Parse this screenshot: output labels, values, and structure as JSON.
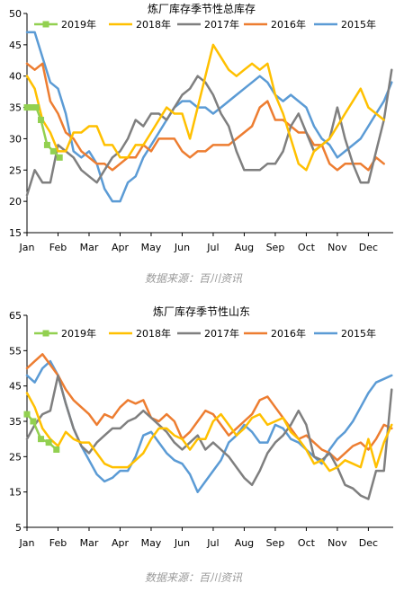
{
  "source_label": "数据来源：百川资讯",
  "chart_data": [
    {
      "type": "line",
      "title": "炼厂库存季节性总库存",
      "xlabel": "",
      "ylabel": "",
      "ylim": [
        15,
        50
      ],
      "yticks": [
        15,
        20,
        25,
        30,
        35,
        40,
        45,
        50
      ],
      "xlim": [
        0,
        11.8
      ],
      "month_labels": [
        "Jan",
        "Feb",
        "Mar",
        "Apr",
        "May",
        "Jun",
        "Jul",
        "Aug",
        "Sep",
        "Oct",
        "Nov",
        "Dec"
      ],
      "legend_position": "top",
      "series": [
        {
          "name": "2019年",
          "color": "#92D050",
          "marker": "square",
          "x": [
            0,
            0.15,
            0.3,
            0.45,
            0.65,
            0.85,
            1.05
          ],
          "y": [
            35,
            35,
            35,
            33,
            29,
            28,
            27
          ]
        },
        {
          "name": "2018年",
          "color": "#FFC000",
          "x": [
            0,
            0.25,
            0.5,
            0.75,
            1.0,
            1.25,
            1.5,
            1.75,
            2.0,
            2.25,
            2.5,
            2.75,
            3.0,
            3.25,
            3.5,
            3.75,
            4.0,
            4.25,
            4.5,
            4.75,
            5.0,
            5.25,
            5.5,
            5.75,
            6.0,
            6.25,
            6.5,
            6.75,
            7.0,
            7.25,
            7.5,
            7.75,
            8.0,
            8.25,
            8.5,
            8.75,
            9.0,
            9.25,
            9.5,
            9.75,
            10.0,
            10.25,
            10.5,
            10.75,
            11.0,
            11.25,
            11.5
          ],
          "y": [
            40,
            38,
            33,
            31,
            28,
            28,
            31,
            31,
            32,
            32,
            29,
            29,
            27,
            27,
            29,
            29,
            31,
            33,
            35,
            34,
            34,
            30,
            35,
            40,
            45,
            43,
            41,
            40,
            41,
            42,
            41,
            42,
            37,
            34,
            30,
            26,
            25,
            28,
            29,
            30,
            32,
            34,
            36,
            38,
            35,
            34,
            33
          ]
        },
        {
          "name": "2017年",
          "color": "#7F7F7F",
          "x": [
            0,
            0.25,
            0.5,
            0.75,
            1.0,
            1.25,
            1.5,
            1.75,
            2.0,
            2.25,
            2.5,
            2.75,
            3.0,
            3.25,
            3.5,
            3.75,
            4.0,
            4.25,
            4.5,
            4.75,
            5.0,
            5.25,
            5.5,
            5.75,
            6.0,
            6.25,
            6.5,
            6.75,
            7.0,
            7.25,
            7.5,
            7.75,
            8.0,
            8.25,
            8.5,
            8.75,
            9.0,
            9.25,
            9.5,
            9.75,
            10.0,
            10.25,
            10.5,
            10.75,
            11.0,
            11.25,
            11.5,
            11.75
          ],
          "y": [
            21,
            25,
            23,
            23,
            29,
            28,
            27,
            25,
            24,
            23,
            25,
            27,
            28,
            30,
            33,
            32,
            34,
            34,
            33,
            35,
            37,
            38,
            40,
            39,
            37,
            34,
            32,
            28,
            25,
            25,
            25,
            26,
            26,
            28,
            32,
            34,
            31,
            28,
            29,
            30,
            35,
            30,
            26,
            23,
            23,
            28,
            33,
            41
          ]
        },
        {
          "name": "2016年",
          "color": "#ED7D31",
          "x": [
            0,
            0.25,
            0.5,
            0.75,
            1.0,
            1.25,
            1.5,
            1.75,
            2.0,
            2.25,
            2.5,
            2.75,
            3.0,
            3.25,
            3.5,
            3.75,
            4.0,
            4.25,
            4.5,
            4.75,
            5.0,
            5.25,
            5.5,
            5.75,
            6.0,
            6.25,
            6.5,
            6.75,
            7.0,
            7.25,
            7.5,
            7.75,
            8.0,
            8.25,
            8.5,
            8.75,
            9.0,
            9.25,
            9.5,
            9.75,
            10.0,
            10.25,
            10.5,
            10.75,
            11.0,
            11.25,
            11.5
          ],
          "y": [
            42,
            41,
            42,
            36,
            34,
            31,
            30,
            28,
            27,
            26,
            26,
            25,
            26,
            27,
            27,
            29,
            28,
            30,
            30,
            30,
            28,
            27,
            28,
            28,
            29,
            29,
            29,
            30,
            31,
            32,
            35,
            36,
            33,
            33,
            32,
            31,
            31,
            29,
            29,
            26,
            25,
            26,
            26,
            26,
            25,
            27,
            26
          ]
        },
        {
          "name": "2015年",
          "color": "#5B9BD5",
          "x": [
            0,
            0.25,
            0.5,
            0.75,
            1.0,
            1.25,
            1.5,
            1.75,
            2.0,
            2.25,
            2.5,
            2.75,
            3.0,
            3.25,
            3.5,
            3.75,
            4.0,
            4.25,
            4.5,
            4.75,
            5.0,
            5.25,
            5.5,
            5.75,
            6.0,
            6.25,
            6.5,
            6.75,
            7.0,
            7.25,
            7.5,
            7.75,
            8.0,
            8.25,
            8.5,
            8.75,
            9.0,
            9.25,
            9.5,
            9.75,
            10.0,
            10.25,
            10.5,
            10.75,
            11.0,
            11.25,
            11.5,
            11.75
          ],
          "y": [
            47,
            47,
            43,
            39,
            38,
            34,
            28,
            27,
            28,
            26,
            22,
            20,
            20,
            23,
            24,
            27,
            29,
            31,
            33,
            35,
            36,
            36,
            35,
            35,
            34,
            35,
            36,
            37,
            38,
            39,
            40,
            39,
            37,
            36,
            37,
            36,
            35,
            32,
            30,
            29,
            27,
            28,
            29,
            30,
            32,
            34,
            36,
            39
          ]
        }
      ]
    },
    {
      "type": "line",
      "title": "炼厂库存季节性山东",
      "xlabel": "",
      "ylabel": "",
      "ylim": [
        5,
        65
      ],
      "yticks": [
        5,
        15,
        25,
        35,
        45,
        55,
        65
      ],
      "xlim": [
        0,
        11.8
      ],
      "month_labels": [
        "Jan",
        "Feb",
        "Mar",
        "Apr",
        "May",
        "Jun",
        "Jul",
        "Aug",
        "Sep",
        "Oct",
        "Nov",
        "Dec"
      ],
      "legend_position": "top",
      "series": [
        {
          "name": "2019年",
          "color": "#92D050",
          "marker": "square",
          "x": [
            0,
            0.2,
            0.45,
            0.7,
            0.95
          ],
          "y": [
            37,
            35,
            30,
            29,
            27
          ]
        },
        {
          "name": "2018年",
          "color": "#FFC000",
          "x": [
            0,
            0.25,
            0.5,
            0.75,
            1.0,
            1.25,
            1.5,
            1.75,
            2.0,
            2.25,
            2.5,
            2.75,
            3.0,
            3.25,
            3.5,
            3.75,
            4.0,
            4.25,
            4.5,
            4.75,
            5.0,
            5.25,
            5.5,
            5.75,
            6.0,
            6.25,
            6.5,
            6.75,
            7.0,
            7.25,
            7.5,
            7.75,
            8.0,
            8.25,
            8.5,
            8.75,
            9.0,
            9.25,
            9.5,
            9.75,
            10.0,
            10.25,
            10.5,
            10.75,
            11.0,
            11.25,
            11.5,
            11.75
          ],
          "y": [
            43,
            39,
            33,
            30,
            28,
            32,
            30,
            29,
            29,
            26,
            23,
            22,
            22,
            22,
            24,
            26,
            30,
            33,
            33,
            31,
            30,
            27,
            30,
            30,
            35,
            37,
            34,
            31,
            33,
            36,
            37,
            34,
            35,
            36,
            32,
            30,
            27,
            23,
            24,
            21,
            22,
            24,
            23,
            22,
            30,
            22,
            29,
            34
          ]
        },
        {
          "name": "2017年",
          "color": "#7F7F7F",
          "x": [
            0,
            0.25,
            0.5,
            0.75,
            1.0,
            1.25,
            1.5,
            1.75,
            2.0,
            2.25,
            2.5,
            2.75,
            3.0,
            3.25,
            3.5,
            3.75,
            4.0,
            4.25,
            4.5,
            4.75,
            5.0,
            5.25,
            5.5,
            5.75,
            6.0,
            6.25,
            6.5,
            6.75,
            7.0,
            7.25,
            7.5,
            7.75,
            8.0,
            8.25,
            8.5,
            8.75,
            9.0,
            9.25,
            9.5,
            9.75,
            10.0,
            10.25,
            10.5,
            10.75,
            11.0,
            11.25,
            11.5,
            11.75
          ],
          "y": [
            30,
            34,
            37,
            38,
            48,
            40,
            33,
            28,
            26,
            29,
            31,
            33,
            33,
            35,
            36,
            38,
            36,
            34,
            32,
            29,
            27,
            29,
            31,
            27,
            29,
            27,
            25,
            22,
            19,
            17,
            21,
            26,
            29,
            31,
            34,
            38,
            34,
            25,
            24,
            26,
            22,
            17,
            16,
            14,
            13,
            21,
            21,
            44
          ]
        },
        {
          "name": "2016年",
          "color": "#ED7D31",
          "x": [
            0,
            0.25,
            0.5,
            0.75,
            1.0,
            1.25,
            1.5,
            1.75,
            2.0,
            2.25,
            2.5,
            2.75,
            3.0,
            3.25,
            3.5,
            3.75,
            4.0,
            4.25,
            4.5,
            4.75,
            5.0,
            5.25,
            5.5,
            5.75,
            6.0,
            6.25,
            6.5,
            6.75,
            7.0,
            7.25,
            7.5,
            7.75,
            8.0,
            8.25,
            8.5,
            8.75,
            9.0,
            9.25,
            9.5,
            9.75,
            10.0,
            10.25,
            10.5,
            10.75,
            11.0,
            11.25,
            11.5,
            11.75
          ],
          "y": [
            50,
            52,
            54,
            51,
            48,
            44,
            41,
            39,
            37,
            34,
            37,
            36,
            39,
            41,
            40,
            41,
            36,
            35,
            37,
            35,
            30,
            32,
            35,
            38,
            37,
            34,
            31,
            33,
            35,
            37,
            41,
            42,
            39,
            36,
            33,
            30,
            31,
            29,
            27,
            26,
            24,
            26,
            28,
            29,
            27,
            30,
            34,
            33
          ]
        },
        {
          "name": "2015年",
          "color": "#5B9BD5",
          "x": [
            0,
            0.25,
            0.5,
            0.75,
            1.0,
            1.25,
            1.5,
            1.75,
            2.0,
            2.25,
            2.5,
            2.75,
            3.0,
            3.25,
            3.5,
            3.75,
            4.0,
            4.25,
            4.5,
            4.75,
            5.0,
            5.25,
            5.5,
            5.75,
            6.0,
            6.25,
            6.5,
            6.75,
            7.0,
            7.25,
            7.5,
            7.75,
            8.0,
            8.25,
            8.5,
            8.75,
            9.0,
            9.25,
            9.5,
            9.75,
            10.0,
            10.25,
            10.5,
            10.75,
            11.0,
            11.25,
            11.5,
            11.75
          ],
          "y": [
            48,
            46,
            50,
            52,
            48,
            40,
            33,
            28,
            24,
            20,
            18,
            19,
            21,
            21,
            25,
            31,
            32,
            29,
            26,
            24,
            23,
            20,
            15,
            18,
            21,
            24,
            29,
            31,
            34,
            32,
            29,
            29,
            34,
            33,
            30,
            29,
            27,
            25,
            23,
            27,
            30,
            32,
            35,
            39,
            43,
            46,
            47,
            48
          ]
        }
      ]
    }
  ]
}
